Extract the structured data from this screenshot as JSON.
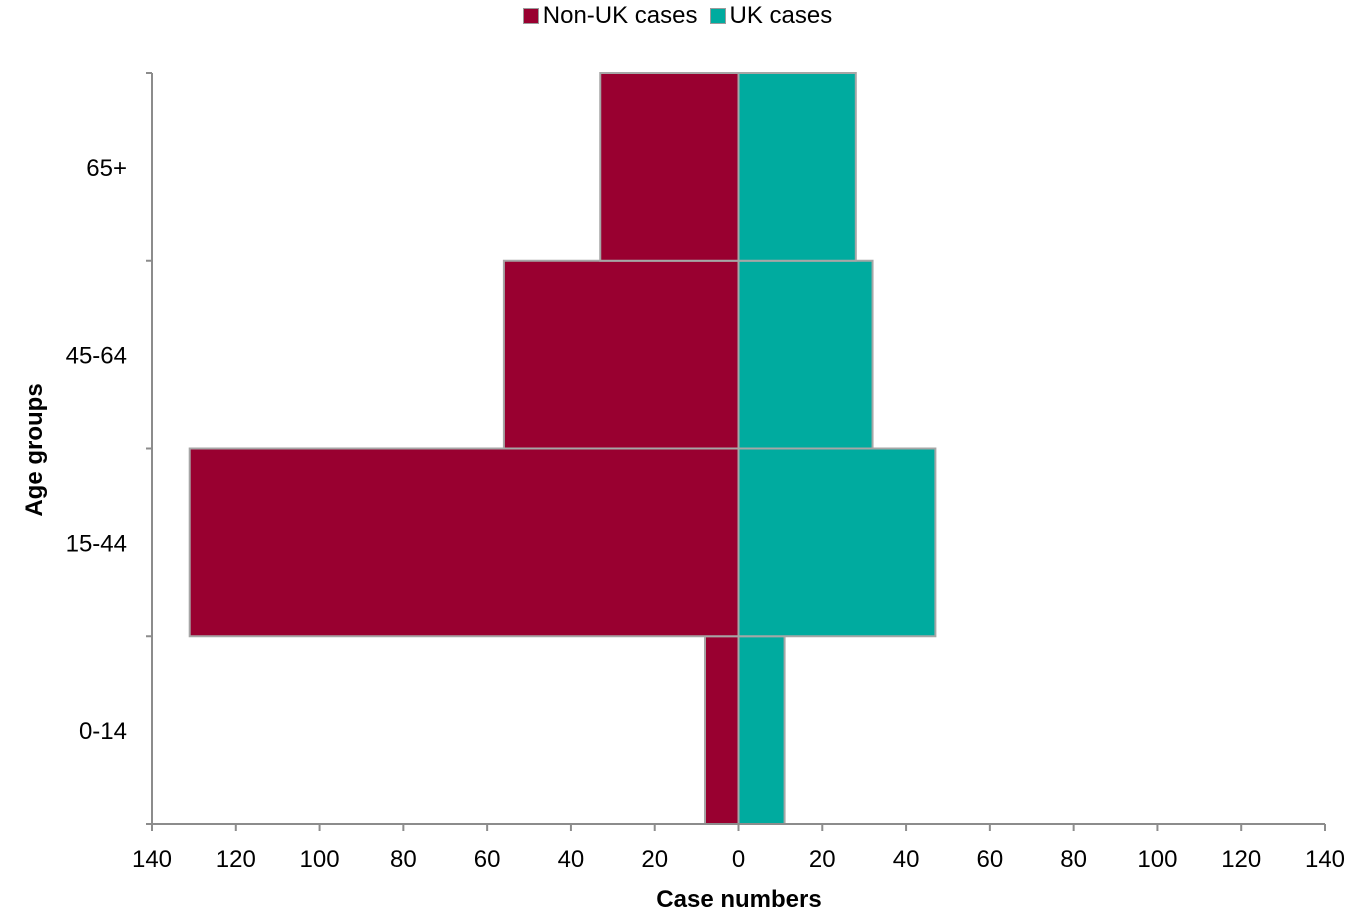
{
  "chart_data": {
    "type": "bar",
    "orientation": "horizontal",
    "layout": "population-pyramid",
    "categories": [
      "0-14",
      "15-44",
      "45-64",
      "65+"
    ],
    "series": [
      {
        "name": "Non-UK cases",
        "values": [
          8,
          131,
          56,
          33
        ],
        "color": "#990030",
        "side": "left"
      },
      {
        "name": "UK cases",
        "values": [
          11,
          47,
          32,
          28
        ],
        "color": "#00ab9f",
        "side": "right"
      }
    ],
    "xlabel": "Case numbers",
    "ylabel": "Age groups",
    "xlim": [
      -140,
      140
    ],
    "xticks": [
      -140,
      -120,
      -100,
      -80,
      -60,
      -40,
      -20,
      0,
      20,
      40,
      60,
      80,
      100,
      120,
      140
    ],
    "xtick_labels": [
      "140",
      "120",
      "100",
      "80",
      "60",
      "40",
      "20",
      "0",
      "20",
      "40",
      "60",
      "80",
      "100",
      "120",
      "140"
    ],
    "grid": false,
    "legend_position": "top-center"
  }
}
